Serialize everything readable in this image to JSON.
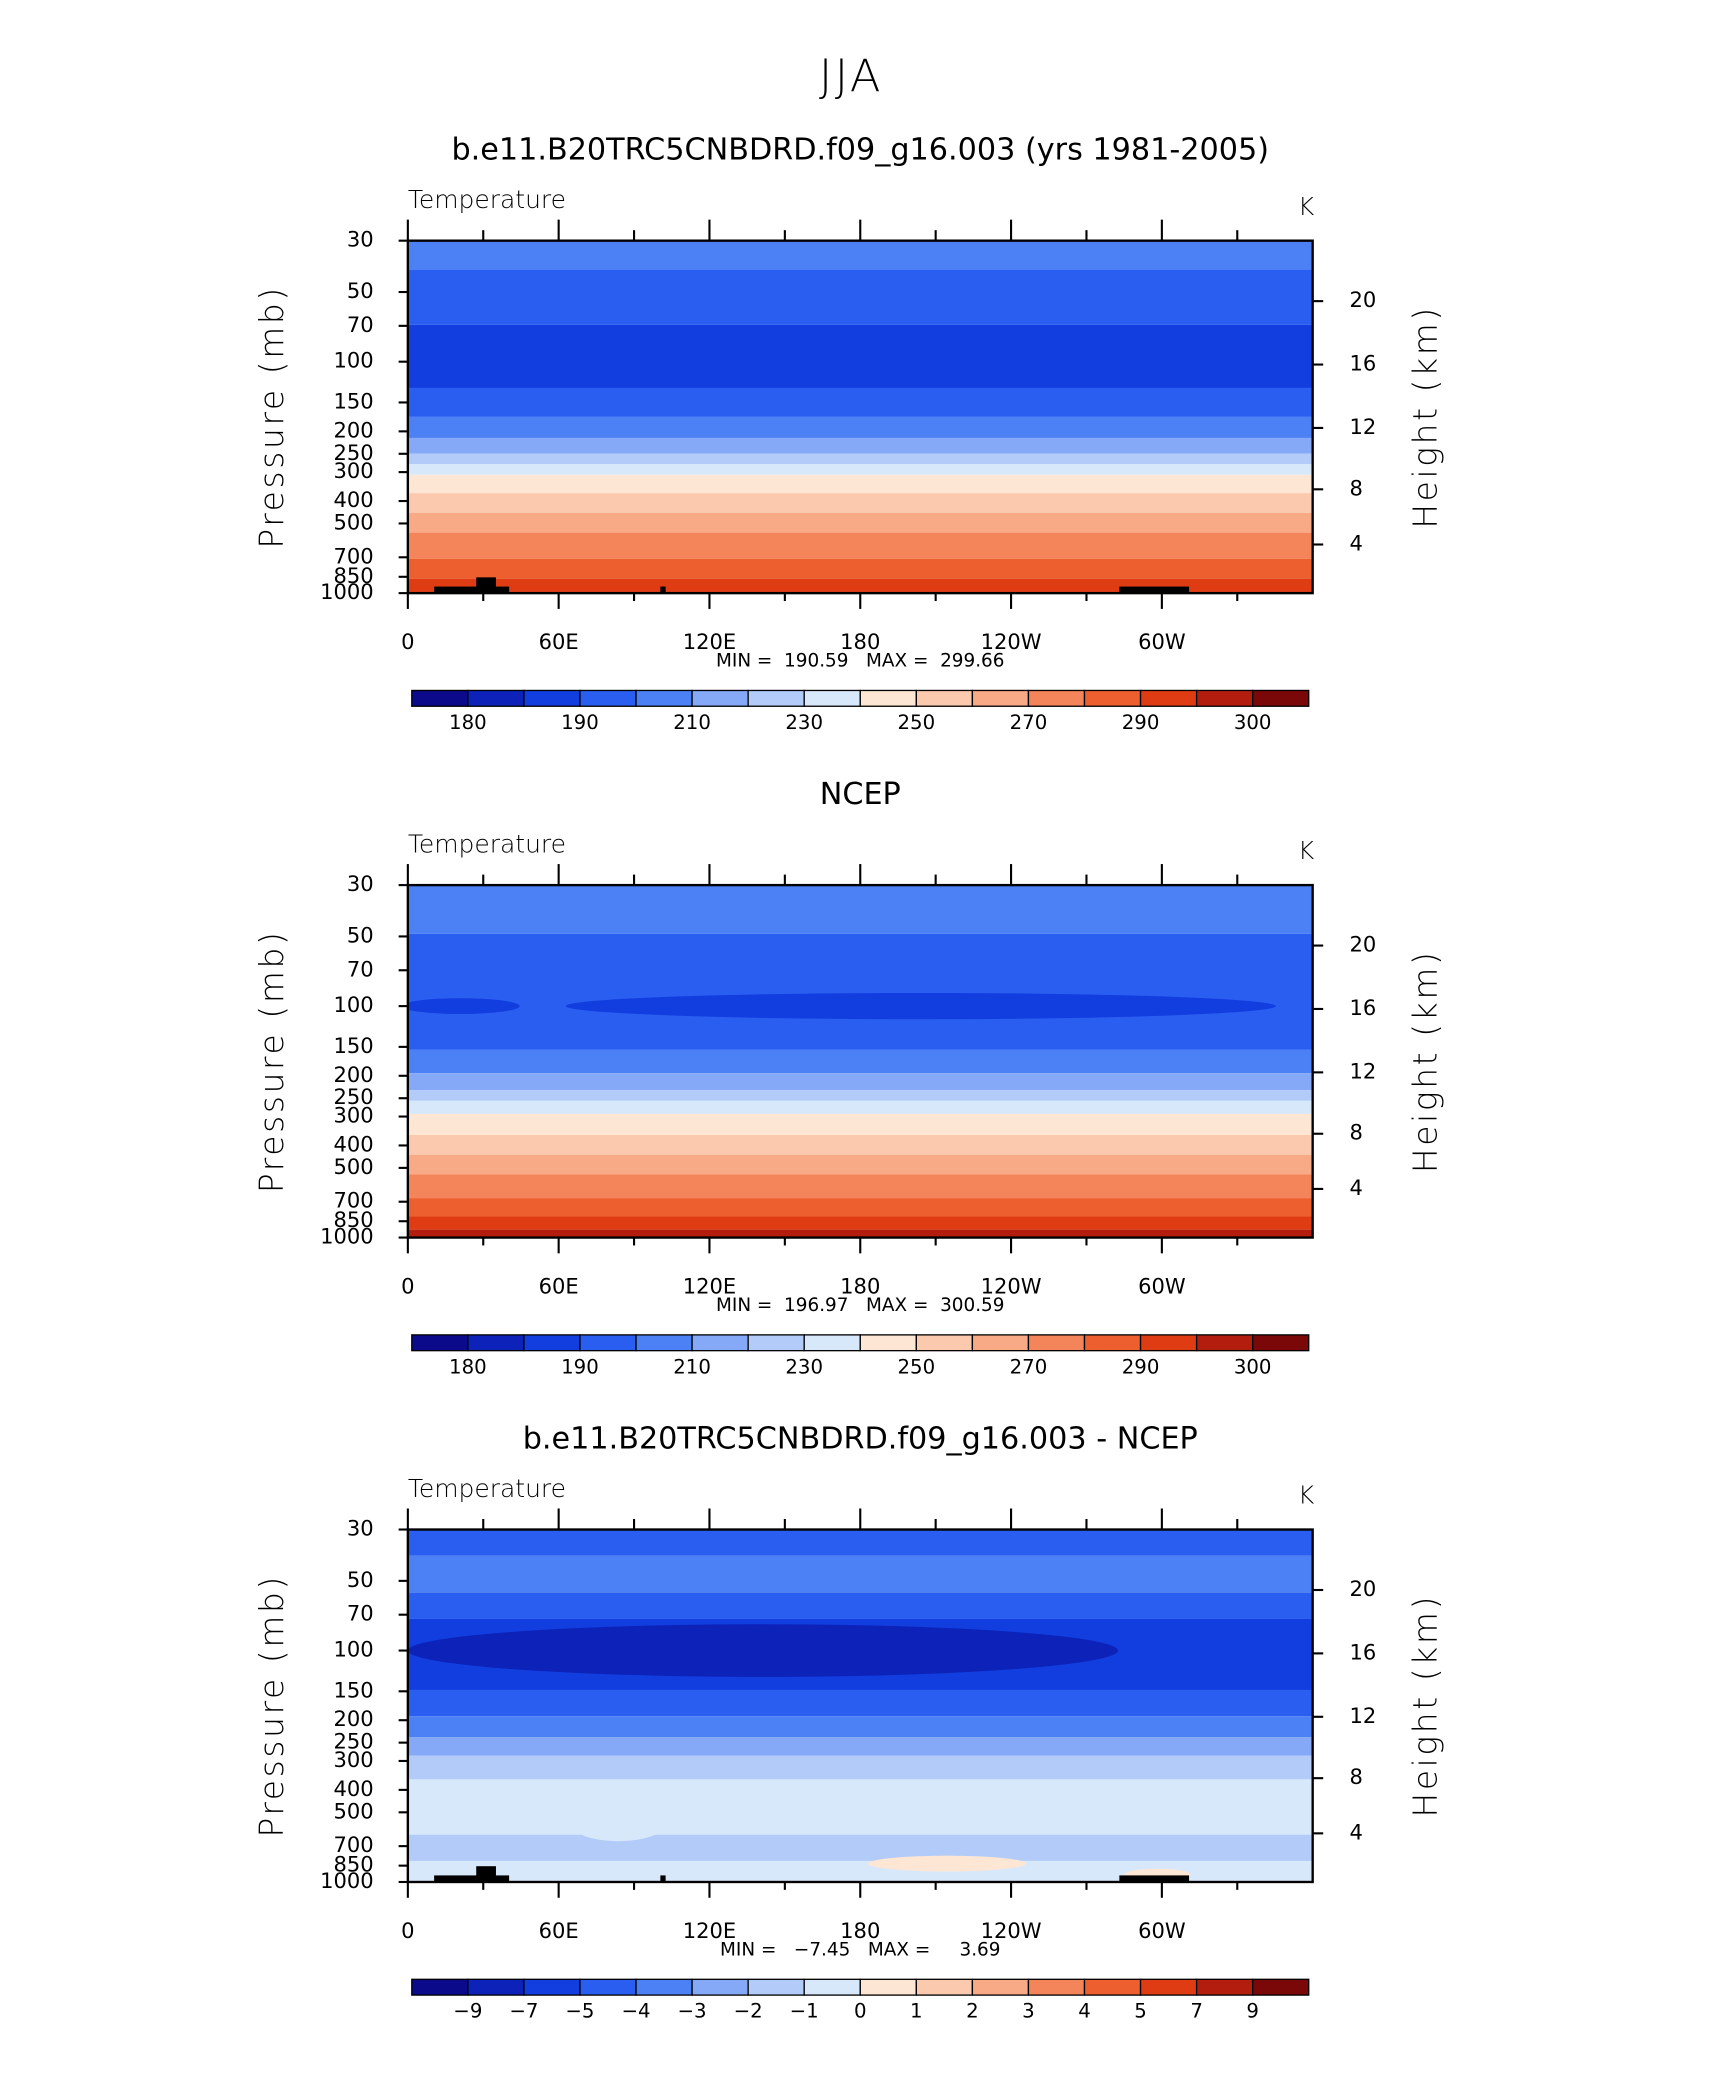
{
  "title": "JJA",
  "chart_data": [
    {
      "type": "contour",
      "title": "b.e11.B20TRC5CNBDRD.f09_g16.003 (yrs 1981-2005)",
      "subtitle": "Temperature",
      "units": "K",
      "ylabel": "Pressure (mb)",
      "y2label": "Height (km)",
      "ylim": [
        30,
        1000
      ],
      "log_y": true,
      "yticks": [
        30,
        50,
        70,
        100,
        150,
        200,
        250,
        300,
        400,
        500,
        700,
        850,
        1000
      ],
      "y2ticks": [
        20,
        16,
        12,
        8,
        4
      ],
      "xlim": [
        0,
        360
      ],
      "xticks": [
        0,
        {
          "value": 60,
          "label": "60E"
        },
        {
          "value": 120,
          "label": "120E"
        },
        180,
        {
          "value": 240,
          "label": "120W"
        },
        {
          "value": 300,
          "label": "60W"
        }
      ],
      "stats": "MIN =  190.59   MAX =  299.66",
      "colorbar": {
        "labels": [
          180,
          190,
          210,
          230,
          250,
          270,
          290,
          300
        ],
        "colors": [
          "#0a0a8a",
          "#0c22b8",
          "#123ee0",
          "#2a5ef0",
          "#4c80f5",
          "#85a8f7",
          "#b3cbf8",
          "#d8e8fb",
          "#fde6d3",
          "#fbc9ad",
          "#f8a986",
          "#f4845a",
          "#ee5f2f",
          "#e03c14",
          "#b31d0e",
          "#7a0808"
        ]
      }
    },
    {
      "type": "contour",
      "title": "NCEP",
      "subtitle": "Temperature",
      "units": "K",
      "ylabel": "Pressure (mb)",
      "y2label": "Height (km)",
      "ylim": [
        30,
        1000
      ],
      "log_y": true,
      "yticks": [
        30,
        50,
        70,
        100,
        150,
        200,
        250,
        300,
        400,
        500,
        700,
        850,
        1000
      ],
      "y2ticks": [
        20,
        16,
        12,
        8,
        4
      ],
      "xlim": [
        0,
        360
      ],
      "xticks": [
        0,
        {
          "value": 60,
          "label": "60E"
        },
        {
          "value": 120,
          "label": "120E"
        },
        180,
        {
          "value": 240,
          "label": "120W"
        },
        {
          "value": 300,
          "label": "60W"
        }
      ],
      "stats": "MIN =  196.97   MAX =  300.59",
      "colorbar": {
        "labels": [
          180,
          190,
          210,
          230,
          250,
          270,
          290,
          300
        ],
        "colors": [
          "#0a0a8a",
          "#0c22b8",
          "#123ee0",
          "#2a5ef0",
          "#4c80f5",
          "#85a8f7",
          "#b3cbf8",
          "#d8e8fb",
          "#fde6d3",
          "#fbc9ad",
          "#f8a986",
          "#f4845a",
          "#ee5f2f",
          "#e03c14",
          "#b31d0e",
          "#7a0808"
        ]
      }
    },
    {
      "type": "contour",
      "title": "b.e11.B20TRC5CNBDRD.f09_g16.003 - NCEP",
      "subtitle": "Temperature",
      "units": "K",
      "ylabel": "Pressure (mb)",
      "y2label": "Height (km)",
      "ylim": [
        30,
        1000
      ],
      "log_y": true,
      "yticks": [
        30,
        50,
        70,
        100,
        150,
        200,
        250,
        300,
        400,
        500,
        700,
        850,
        1000
      ],
      "y2ticks": [
        20,
        16,
        12,
        8,
        4
      ],
      "xlim": [
        0,
        360
      ],
      "xticks": [
        0,
        {
          "value": 60,
          "label": "60E"
        },
        {
          "value": 120,
          "label": "120E"
        },
        180,
        {
          "value": 240,
          "label": "120W"
        },
        {
          "value": 300,
          "label": "60W"
        }
      ],
      "stats": "MIN =   −7.45   MAX =     3.69",
      "colorbar": {
        "labels": [
          "−9",
          "−7",
          "−5",
          "−4",
          "−3",
          "−2",
          "−1",
          0,
          1,
          2,
          3,
          4,
          5,
          7,
          9
        ],
        "colors": [
          "#0a0a8a",
          "#0c22b8",
          "#123ee0",
          "#2a5ef0",
          "#4c80f5",
          "#85a8f7",
          "#b3cbf8",
          "#d8e8fb",
          "#fde6d3",
          "#fbc9ad",
          "#f8a986",
          "#f4845a",
          "#ee5f2f",
          "#e03c14",
          "#b31d0e",
          "#7a0808"
        ]
      }
    }
  ]
}
